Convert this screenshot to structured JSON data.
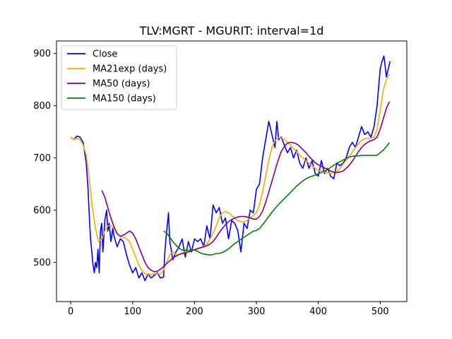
{
  "chart_data": {
    "type": "line",
    "title": "TLV:MGRT - MGURIT: interval=1d",
    "xlabel": "",
    "ylabel": "",
    "xlim": [
      -23,
      543
    ],
    "ylim": [
      425,
      924
    ],
    "xticks": [
      0,
      100,
      200,
      300,
      400,
      500
    ],
    "yticks": [
      500,
      600,
      700,
      800,
      900
    ],
    "grid": false,
    "legend_position": "top-left",
    "series": [
      {
        "name": "Close",
        "color": "#0000ff",
        "x": [
          0,
          5,
          10,
          15,
          20,
          25,
          28,
          30,
          32,
          34,
          36,
          38,
          40,
          42,
          44,
          46,
          48,
          50,
          52,
          55,
          58,
          60,
          62,
          65,
          68,
          70,
          75,
          80,
          85,
          90,
          95,
          100,
          105,
          110,
          115,
          120,
          125,
          130,
          135,
          140,
          145,
          150,
          152,
          155,
          158,
          160,
          165,
          170,
          175,
          180,
          185,
          190,
          195,
          200,
          205,
          210,
          215,
          220,
          225,
          230,
          235,
          240,
          245,
          250,
          255,
          260,
          265,
          270,
          275,
          280,
          285,
          290,
          295,
          300,
          305,
          310,
          315,
          320,
          325,
          330,
          333,
          336,
          340,
          345,
          350,
          355,
          360,
          365,
          370,
          375,
          380,
          385,
          390,
          395,
          400,
          405,
          410,
          415,
          420,
          425,
          430,
          435,
          440,
          445,
          450,
          455,
          460,
          465,
          470,
          475,
          480,
          485,
          490,
          495,
          500,
          503,
          506,
          510,
          513,
          516
        ],
        "values": [
          740,
          735,
          742,
          740,
          730,
          690,
          640,
          590,
          545,
          520,
          495,
          480,
          500,
          490,
          525,
          480,
          560,
          575,
          520,
          580,
          600,
          560,
          575,
          540,
          565,
          550,
          530,
          545,
          540,
          515,
          495,
          480,
          490,
          470,
          480,
          465,
          478,
          470,
          475,
          480,
          470,
          472,
          520,
          560,
          595,
          540,
          505,
          520,
          530,
          545,
          510,
          540,
          520,
          545,
          540,
          545,
          530,
          570,
          545,
          610,
          595,
          605,
          575,
          585,
          545,
          580,
          575,
          560,
          520,
          575,
          565,
          600,
          595,
          640,
          650,
          700,
          735,
          770,
          745,
          720,
          770,
          735,
          740,
          725,
          710,
          720,
          700,
          715,
          690,
          680,
          700,
          680,
          695,
          670,
          665,
          695,
          670,
          680,
          665,
          660,
          690,
          685,
          690,
          700,
          720,
          730,
          720,
          740,
          760,
          745,
          750,
          740,
          760,
          800,
          870,
          885,
          895,
          855,
          870,
          885
        ]
      },
      {
        "name": "MA21exp (days)",
        "color": "#ffa500",
        "x": [
          0,
          5,
          10,
          15,
          20,
          25,
          30,
          35,
          40,
          45,
          50,
          55,
          60,
          65,
          70,
          75,
          80,
          85,
          90,
          95,
          100,
          105,
          110,
          115,
          120,
          125,
          130,
          135,
          140,
          145,
          150,
          155,
          160,
          165,
          170,
          175,
          180,
          185,
          190,
          195,
          200,
          205,
          210,
          215,
          220,
          225,
          230,
          235,
          240,
          245,
          250,
          255,
          260,
          265,
          270,
          275,
          280,
          285,
          290,
          295,
          300,
          305,
          310,
          315,
          320,
          325,
          330,
          335,
          340,
          345,
          350,
          355,
          360,
          365,
          370,
          375,
          380,
          385,
          390,
          395,
          400,
          405,
          410,
          415,
          420,
          425,
          430,
          435,
          440,
          445,
          450,
          455,
          460,
          465,
          470,
          475,
          480,
          485,
          490,
          495,
          500,
          505,
          510,
          515
        ],
        "values": [
          740,
          735,
          738,
          735,
          725,
          705,
          660,
          605,
          565,
          540,
          545,
          560,
          570,
          570,
          565,
          555,
          550,
          548,
          546,
          540,
          525,
          510,
          495,
          485,
          478,
          477,
          477,
          478,
          478,
          478,
          485,
          500,
          515,
          520,
          515,
          515,
          518,
          520,
          520,
          523,
          525,
          527,
          528,
          532,
          535,
          545,
          555,
          570,
          585,
          595,
          597,
          595,
          590,
          585,
          580,
          578,
          578,
          580,
          585,
          590,
          595,
          610,
          635,
          665,
          695,
          720,
          733,
          738,
          738,
          736,
          730,
          725,
          718,
          712,
          705,
          700,
          695,
          690,
          685,
          680,
          676,
          675,
          673,
          672,
          670,
          672,
          675,
          680,
          688,
          695,
          703,
          712,
          720,
          727,
          733,
          737,
          738,
          738,
          740,
          755,
          790,
          830,
          850,
          860
        ]
      },
      {
        "name": "MA50 (days)",
        "color": "#800080",
        "x": [
          50,
          55,
          60,
          65,
          70,
          75,
          80,
          85,
          90,
          95,
          100,
          105,
          110,
          115,
          120,
          125,
          130,
          135,
          140,
          145,
          150,
          155,
          160,
          165,
          170,
          175,
          180,
          185,
          190,
          195,
          200,
          205,
          210,
          215,
          220,
          225,
          230,
          235,
          240,
          245,
          250,
          255,
          260,
          265,
          270,
          275,
          280,
          285,
          290,
          295,
          300,
          305,
          310,
          315,
          320,
          325,
          330,
          335,
          340,
          345,
          350,
          355,
          360,
          365,
          370,
          375,
          380,
          385,
          390,
          395,
          400,
          405,
          410,
          415,
          420,
          425,
          430,
          435,
          440,
          445,
          450,
          455,
          460,
          465,
          470,
          475,
          480,
          485,
          490,
          495,
          500,
          505,
          510,
          515
        ],
        "values": [
          638,
          625,
          605,
          585,
          568,
          555,
          550,
          552,
          556,
          560,
          556,
          545,
          530,
          515,
          500,
          490,
          485,
          482,
          483,
          487,
          492,
          498,
          503,
          508,
          512,
          515,
          517,
          518,
          520,
          522,
          524,
          526,
          528,
          530,
          532,
          535,
          540,
          548,
          557,
          565,
          572,
          578,
          582,
          585,
          587,
          588,
          588,
          587,
          585,
          583,
          583,
          588,
          598,
          615,
          635,
          655,
          675,
          695,
          712,
          722,
          728,
          730,
          729,
          727,
          722,
          716,
          710,
          703,
          697,
          691,
          687,
          684,
          681,
          678,
          675,
          673,
          672,
          673,
          675,
          680,
          686,
          694,
          703,
          712,
          720,
          726,
          730,
          733,
          735,
          740,
          755,
          775,
          795,
          808
        ]
      },
      {
        "name": "MA150 (days)",
        "color": "#008000",
        "x": [
          150,
          155,
          160,
          165,
          170,
          175,
          180,
          185,
          190,
          195,
          200,
          205,
          210,
          215,
          220,
          225,
          230,
          235,
          240,
          245,
          250,
          255,
          260,
          265,
          270,
          275,
          280,
          285,
          290,
          295,
          300,
          305,
          310,
          315,
          320,
          325,
          330,
          335,
          340,
          345,
          350,
          355,
          360,
          365,
          370,
          375,
          380,
          385,
          390,
          395,
          400,
          405,
          410,
          415,
          420,
          425,
          430,
          435,
          440,
          445,
          450,
          455,
          460,
          465,
          470,
          475,
          480,
          485,
          490,
          495,
          500,
          505,
          510,
          515
        ],
        "values": [
          560,
          556,
          548,
          540,
          533,
          527,
          524,
          523,
          523,
          524,
          524,
          521,
          518,
          516,
          515,
          514,
          515,
          517,
          517,
          519,
          522,
          526,
          531,
          536,
          540,
          544,
          548,
          552,
          556,
          560,
          561,
          565,
          572,
          580,
          588,
          596,
          603,
          610,
          616,
          622,
          628,
          634,
          640,
          646,
          651,
          656,
          660,
          663,
          665,
          667,
          670,
          672,
          675,
          678,
          682,
          686,
          690,
          693,
          696,
          699,
          702,
          703,
          704,
          704,
          705,
          705,
          705,
          705,
          705,
          705,
          710,
          715,
          722,
          729
        ]
      }
    ]
  }
}
